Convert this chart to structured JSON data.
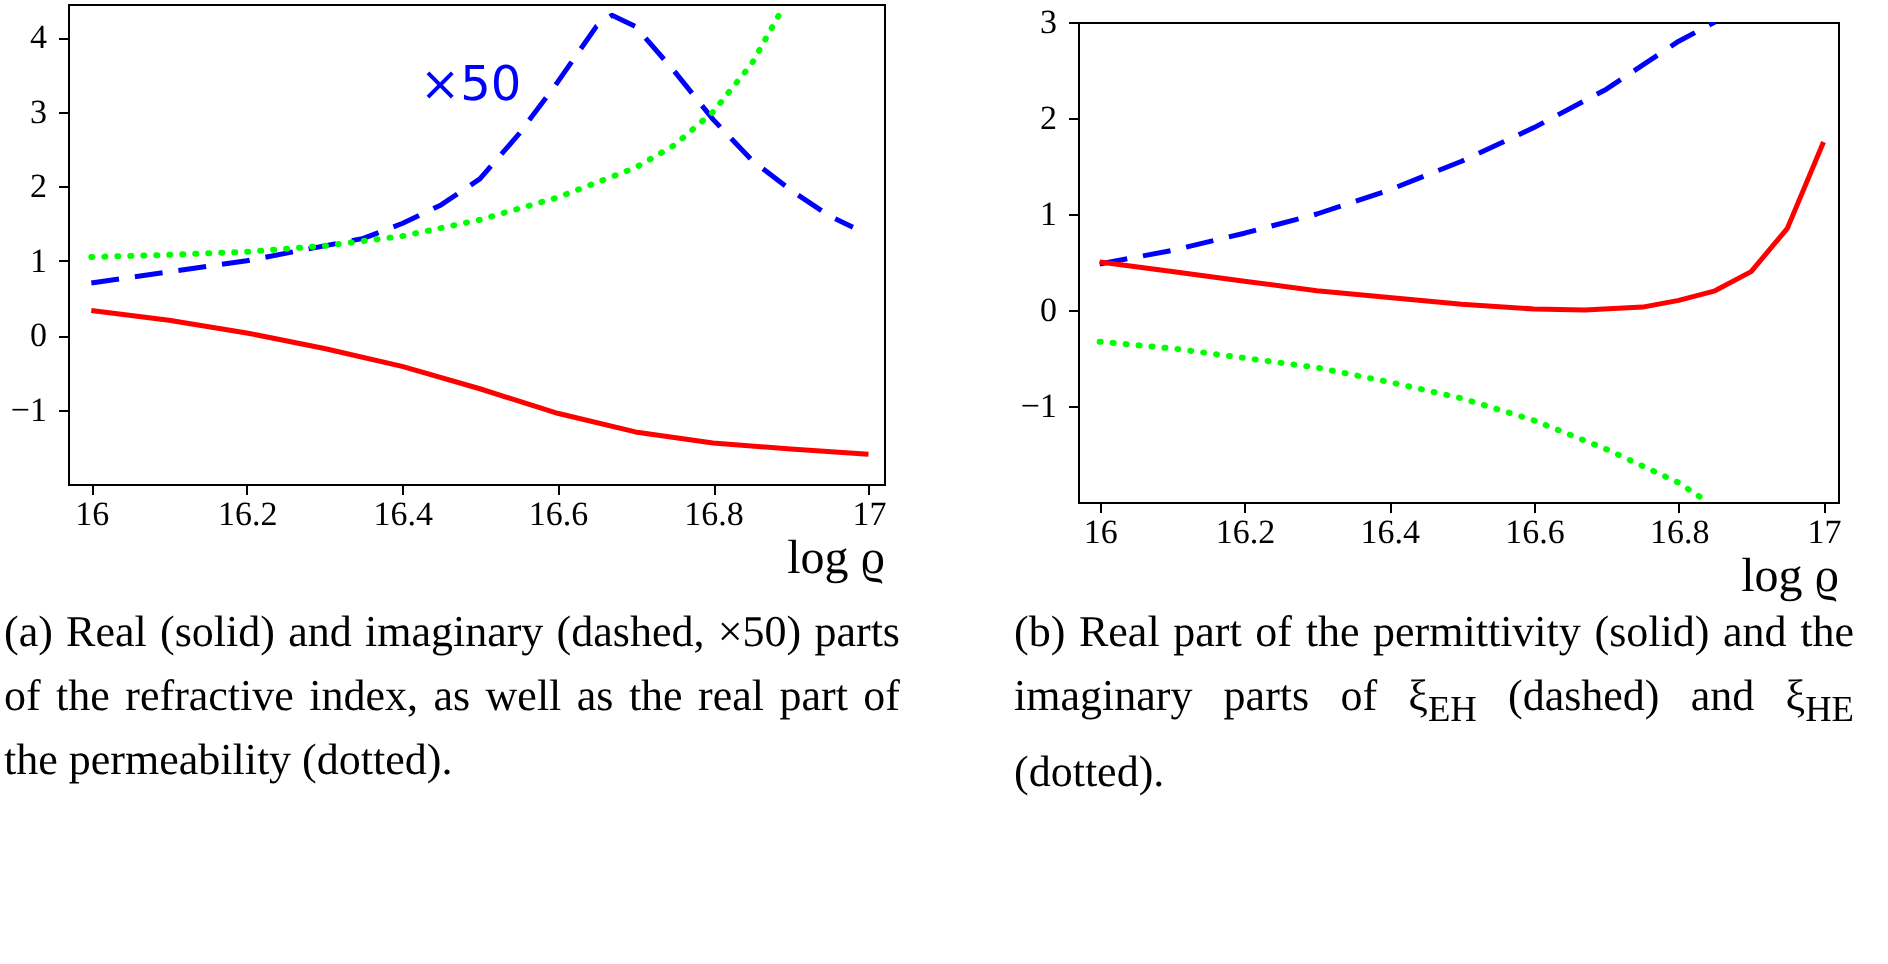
{
  "chart_data": [
    {
      "type": "line",
      "xlabel": "log ϱ",
      "xlim": [
        15.97,
        17.02
      ],
      "xticks": [
        16,
        16.2,
        16.4,
        16.6,
        16.8,
        17
      ],
      "ylim": [
        -2,
        4.45
      ],
      "yticks": [
        -1,
        0,
        1,
        2,
        3,
        4
      ],
      "grid": false,
      "series": [
        {
          "color": "#ff0000",
          "line_style": "solid",
          "x": [
            16,
            16.1,
            16.2,
            16.3,
            16.4,
            16.5,
            16.6,
            16.7,
            16.8,
            16.9,
            17
          ],
          "values": [
            0.33,
            0.2,
            0.03,
            -0.18,
            -0.42,
            -0.72,
            -1.05,
            -1.3,
            -1.45,
            -1.53,
            -1.6
          ]
        },
        {
          "color": "#0000ff",
          "line_style": "dashed",
          "x": [
            16,
            16.1,
            16.2,
            16.3,
            16.35,
            16.4,
            16.45,
            16.5,
            16.55,
            16.6,
            16.65,
            16.67,
            16.7,
            16.75,
            16.8,
            16.85,
            16.9,
            16.95,
            16.98
          ],
          "values": [
            0.7,
            0.85,
            1.0,
            1.2,
            1.3,
            1.5,
            1.75,
            2.1,
            2.7,
            3.4,
            4.15,
            4.3,
            4.15,
            3.55,
            2.9,
            2.35,
            1.95,
            1.6,
            1.45
          ]
        },
        {
          "color": "#00ff00",
          "line_style": "dotted",
          "x": [
            16,
            16.1,
            16.2,
            16.3,
            16.4,
            16.5,
            16.6,
            16.7,
            16.75,
            16.8,
            16.85,
            16.89
          ],
          "values": [
            1.05,
            1.08,
            1.12,
            1.2,
            1.33,
            1.55,
            1.85,
            2.25,
            2.55,
            3.0,
            3.65,
            4.4
          ]
        }
      ],
      "annotations": [
        "×50",
        "(a) Real (solid) and imaginary (dashed, ×50) parts of the refractive index, as well as the real part of the permeability (dotted)."
      ]
    },
    {
      "type": "line",
      "xlabel": "log ϱ",
      "xlim": [
        15.97,
        17.02
      ],
      "xticks": [
        16,
        16.2,
        16.4,
        16.6,
        16.8,
        17
      ],
      "ylim": [
        -2,
        3
      ],
      "yticks": [
        -1,
        0,
        1,
        2,
        3
      ],
      "grid": false,
      "series": [
        {
          "color": "#0000ff",
          "line_style": "dashed",
          "x": [
            16,
            16.1,
            16.2,
            16.3,
            16.4,
            16.5,
            16.6,
            16.7,
            16.75,
            16.8,
            16.85
          ],
          "values": [
            0.48,
            0.62,
            0.8,
            1.0,
            1.25,
            1.55,
            1.9,
            2.3,
            2.55,
            2.8,
            3.0
          ]
        },
        {
          "color": "#ff0000",
          "line_style": "solid",
          "x": [
            16,
            16.1,
            16.2,
            16.3,
            16.4,
            16.5,
            16.6,
            16.67,
            16.75,
            16.8,
            16.85,
            16.9,
            16.95,
            17
          ],
          "values": [
            0.5,
            0.4,
            0.3,
            0.2,
            0.13,
            0.06,
            0.01,
            0.0,
            0.03,
            0.1,
            0.2,
            0.4,
            0.85,
            1.75
          ]
        },
        {
          "color": "#00ff00",
          "line_style": "dotted",
          "x": [
            16,
            16.1,
            16.2,
            16.3,
            16.4,
            16.5,
            16.6,
            16.7,
            16.8,
            16.84
          ],
          "values": [
            -0.33,
            -0.4,
            -0.5,
            -0.6,
            -0.75,
            -0.92,
            -1.15,
            -1.45,
            -1.8,
            -2.0
          ]
        }
      ],
      "annotations": [
        "(b) Real part of the permittivity (solid) and the imaginary parts of ξ$_{EH}$ (dashed) and ξ$_{HE}$ (dotted)."
      ]
    }
  ]
}
